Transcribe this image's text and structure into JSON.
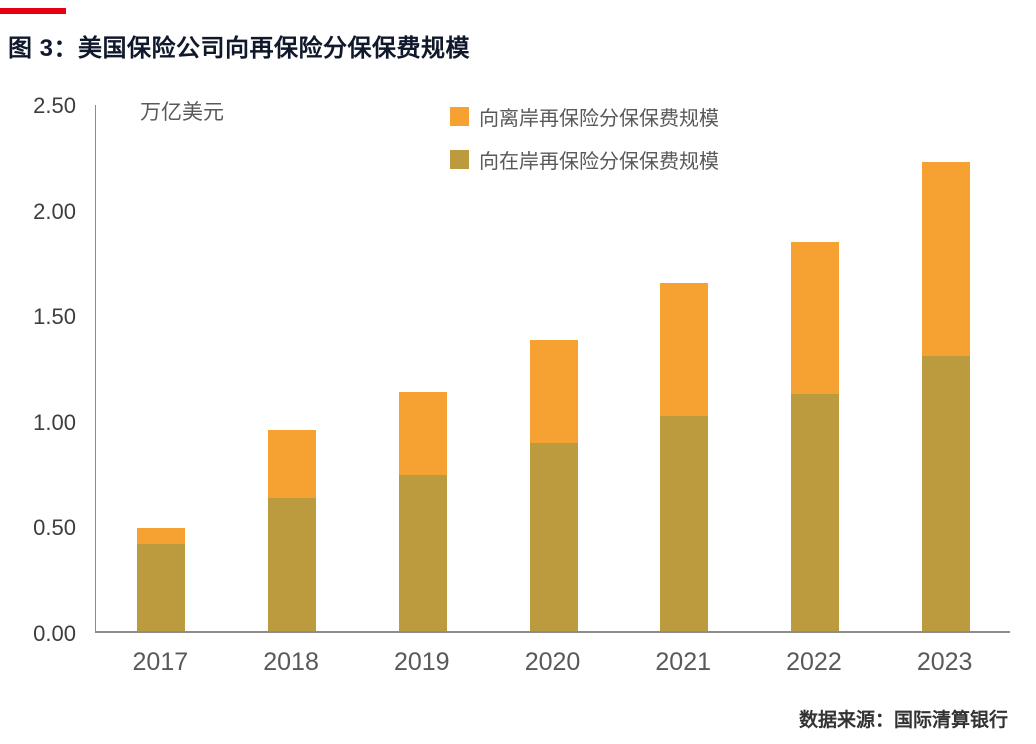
{
  "title": "图 3：美国保险公司向再保险分保保费规模",
  "source": "数据来源：国际清算银行",
  "colors": {
    "accent_rule": "#e60012",
    "offshore": "#f5a232",
    "onshore": "#bc9b3e",
    "axis": "#8c8c8c"
  },
  "chart_data": {
    "type": "bar",
    "stacked": true,
    "title": "图 3：美国保险公司向再保险分保保费规模",
    "unit_label": "万亿美元",
    "xlabel": "",
    "ylabel": "万亿美元",
    "ylim": [
      0,
      2.5
    ],
    "yticks": [
      "2.50",
      "2.00",
      "1.50",
      "1.00",
      "0.50",
      "0.00"
    ],
    "grid": false,
    "legend_position": "top-center",
    "categories": [
      "2017",
      "2018",
      "2019",
      "2020",
      "2021",
      "2022",
      "2023"
    ],
    "series": [
      {
        "name": "向在岸再保险分保保费规模",
        "key": "onshore",
        "color": "#bc9b3e",
        "values": [
          0.41,
          0.63,
          0.74,
          0.89,
          1.02,
          1.12,
          1.3
        ]
      },
      {
        "name": "向离岸再保险分保保费规模",
        "key": "offshore",
        "color": "#f5a232",
        "values": [
          0.08,
          0.32,
          0.39,
          0.49,
          0.63,
          0.72,
          0.92
        ]
      }
    ],
    "totals": [
      0.49,
      0.95,
      1.13,
      1.38,
      1.65,
      1.84,
      2.22
    ],
    "legend": [
      {
        "label": "向离岸再保险分保保费规模",
        "color": "#f5a232",
        "key": "offshore"
      },
      {
        "label": "向在岸再保险分保保费规模",
        "color": "#bc9b3e",
        "key": "onshore"
      }
    ]
  }
}
